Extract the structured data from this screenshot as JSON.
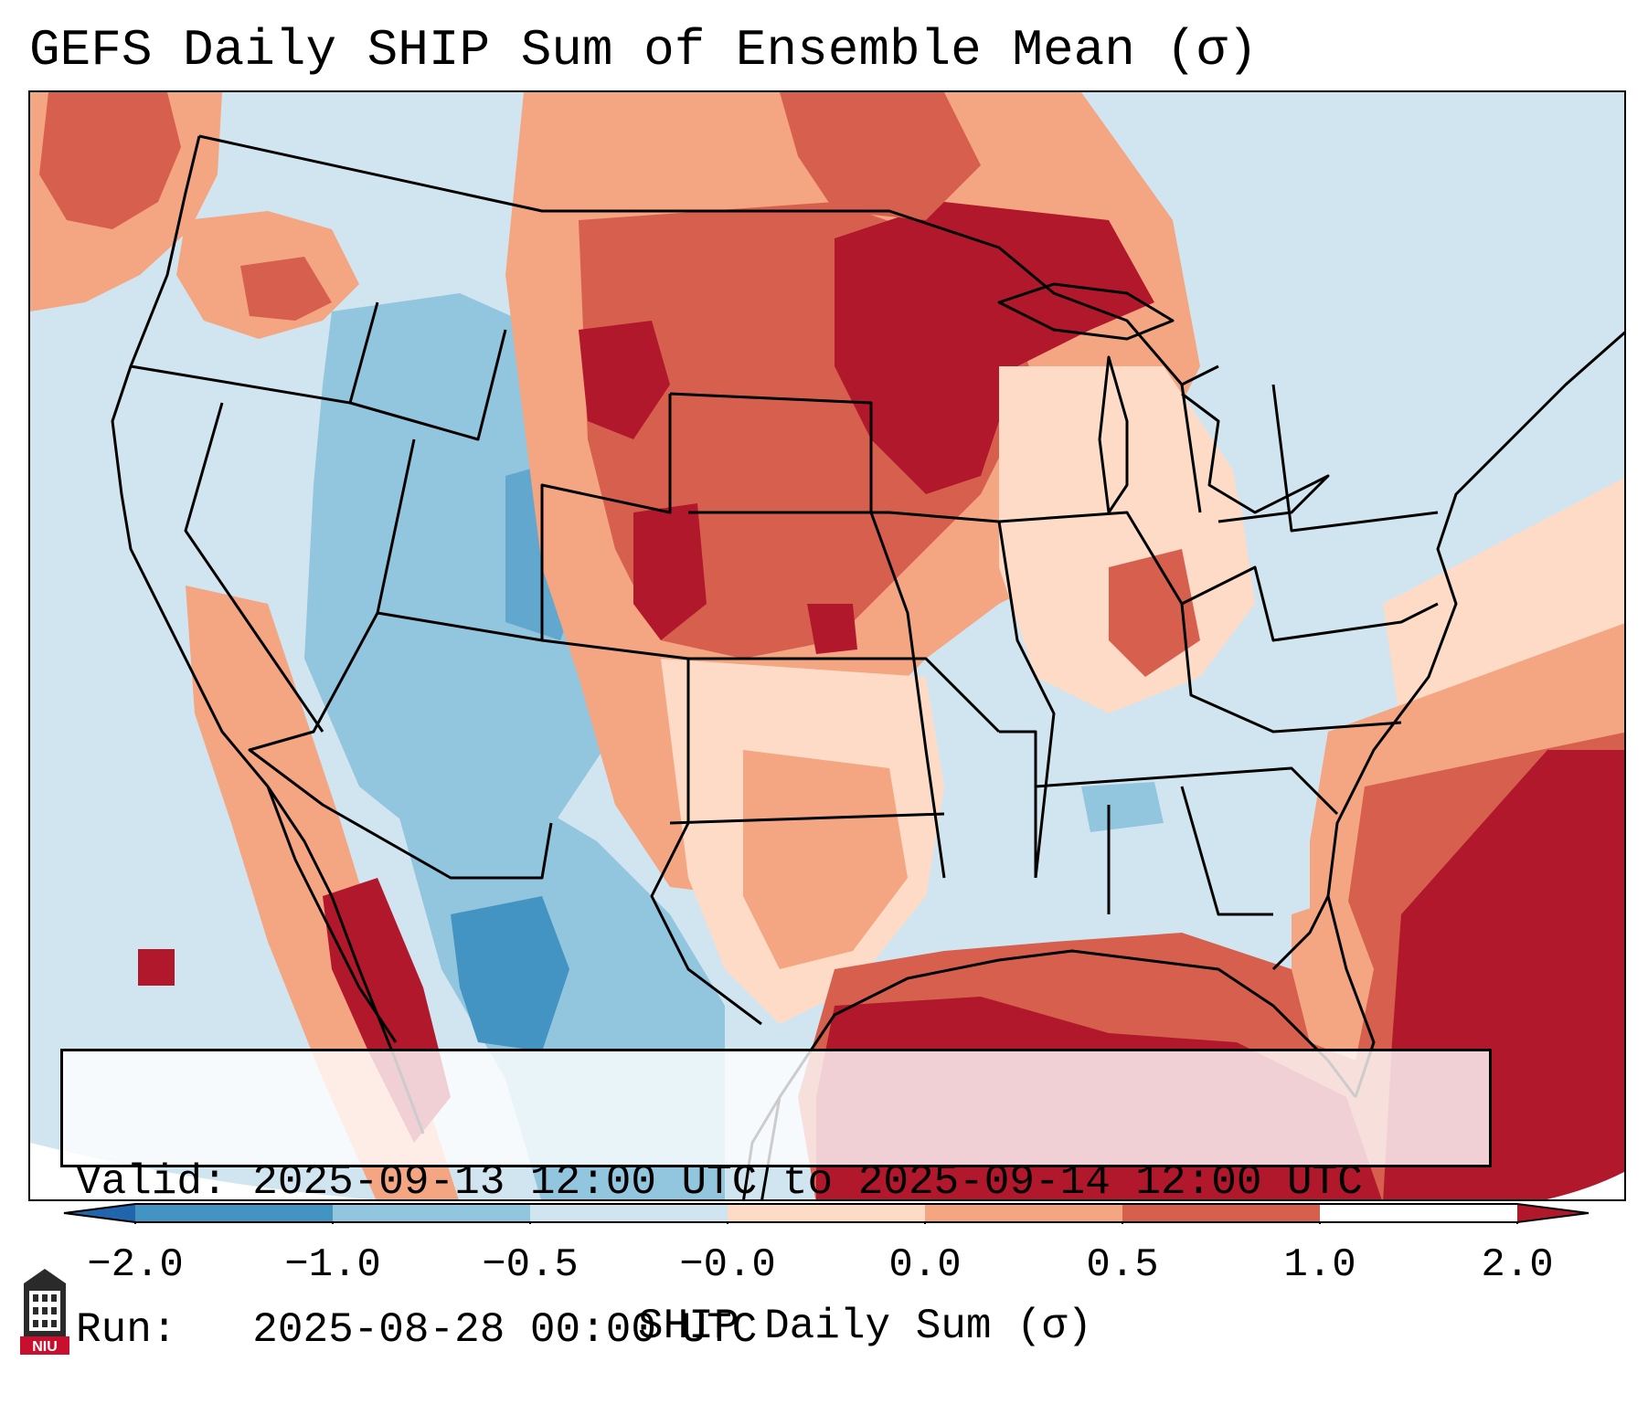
{
  "title": "GEFS Daily SHIP Sum of Ensemble Mean (σ)",
  "info": {
    "valid_label": "Valid:",
    "valid_value": "2025-09-13 12:00 UTC to 2025-09-14 12:00 UTC",
    "run_label": "Run:",
    "run_value": "2025-08-28 00:00 UTC"
  },
  "colorbar": {
    "label": "SHIP Daily Sum (σ)",
    "ticks": [
      "−2.0",
      "−1.0",
      "−0.5",
      "−0.0",
      "0.0",
      "0.5",
      "1.0",
      "2.0"
    ],
    "bins": [
      {
        "range": "< -2.0",
        "color": "#2166ac"
      },
      {
        "range": "-2.0 to -1.0",
        "color": "#4393c3"
      },
      {
        "range": "-1.0 to -0.5",
        "color": "#92c5de"
      },
      {
        "range": "-0.5 to -0.0",
        "color": "#d1e5f0"
      },
      {
        "range": "0.0 to 0.5",
        "color": "#fddbc7"
      },
      {
        "range": "0.5 to 1.0",
        "color": "#f4a582"
      },
      {
        "range": "1.0 to 2.0",
        "color": "#d6604d"
      },
      {
        "range": "> 2.0",
        "color": "#b2182b"
      }
    ]
  },
  "logo": {
    "text": "NIU",
    "color": "#c8102e"
  },
  "colors": {
    "neg_strong": "#4393c3",
    "neg_mid": "#92c5de",
    "neg_weak": "#d1e5f0",
    "neutral": "#f7f7f7",
    "pos_weak": "#fddbc7",
    "pos_mid": "#f4a582",
    "pos_strong": "#d6604d",
    "pos_max": "#b2182b"
  }
}
